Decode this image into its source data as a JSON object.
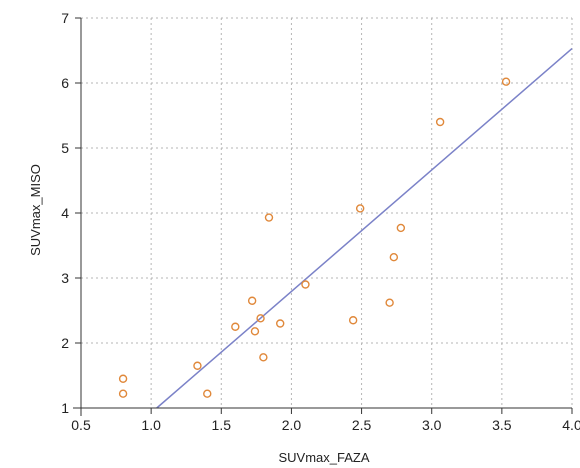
{
  "chart_data": {
    "type": "scatter",
    "title": "",
    "xlabel": "SUVmax_FAZA",
    "ylabel": "SUVmax_MISO",
    "xlim": [
      0.5,
      4.0
    ],
    "ylim": [
      1,
      7
    ],
    "xticks": [
      0.5,
      1.0,
      1.5,
      2.0,
      2.5,
      3.0,
      3.5,
      4.0
    ],
    "xtick_labels": [
      "0.5",
      "1.0",
      "1.5",
      "2.0",
      "2.5",
      "3.0",
      "3.5",
      "4.0"
    ],
    "yticks": [
      1,
      2,
      3,
      4,
      5,
      6,
      7
    ],
    "ytick_labels": [
      "1",
      "2",
      "3",
      "4",
      "5",
      "6",
      "7"
    ],
    "grid": true,
    "grid_style": "dotted",
    "legend": "none",
    "series": [
      {
        "marker": "circle-open",
        "color": "#e0883a",
        "points": [
          {
            "x": 0.8,
            "y": 1.45
          },
          {
            "x": 0.8,
            "y": 1.22
          },
          {
            "x": 1.33,
            "y": 1.65
          },
          {
            "x": 1.4,
            "y": 1.22
          },
          {
            "x": 1.6,
            "y": 2.25
          },
          {
            "x": 1.72,
            "y": 2.65
          },
          {
            "x": 1.74,
            "y": 2.18
          },
          {
            "x": 1.78,
            "y": 2.38
          },
          {
            "x": 1.8,
            "y": 1.78
          },
          {
            "x": 1.84,
            "y": 3.93
          },
          {
            "x": 1.92,
            "y": 2.3
          },
          {
            "x": 2.1,
            "y": 2.9
          },
          {
            "x": 2.44,
            "y": 2.35
          },
          {
            "x": 2.49,
            "y": 4.07
          },
          {
            "x": 2.7,
            "y": 2.62
          },
          {
            "x": 2.73,
            "y": 3.32
          },
          {
            "x": 2.78,
            "y": 3.77
          },
          {
            "x": 3.06,
            "y": 5.4
          },
          {
            "x": 3.53,
            "y": 6.02
          }
        ]
      }
    ],
    "fit_line": {
      "x": [
        1.04,
        4.0
      ],
      "y": [
        1.0,
        6.53
      ],
      "color": "#7b82c8"
    }
  }
}
